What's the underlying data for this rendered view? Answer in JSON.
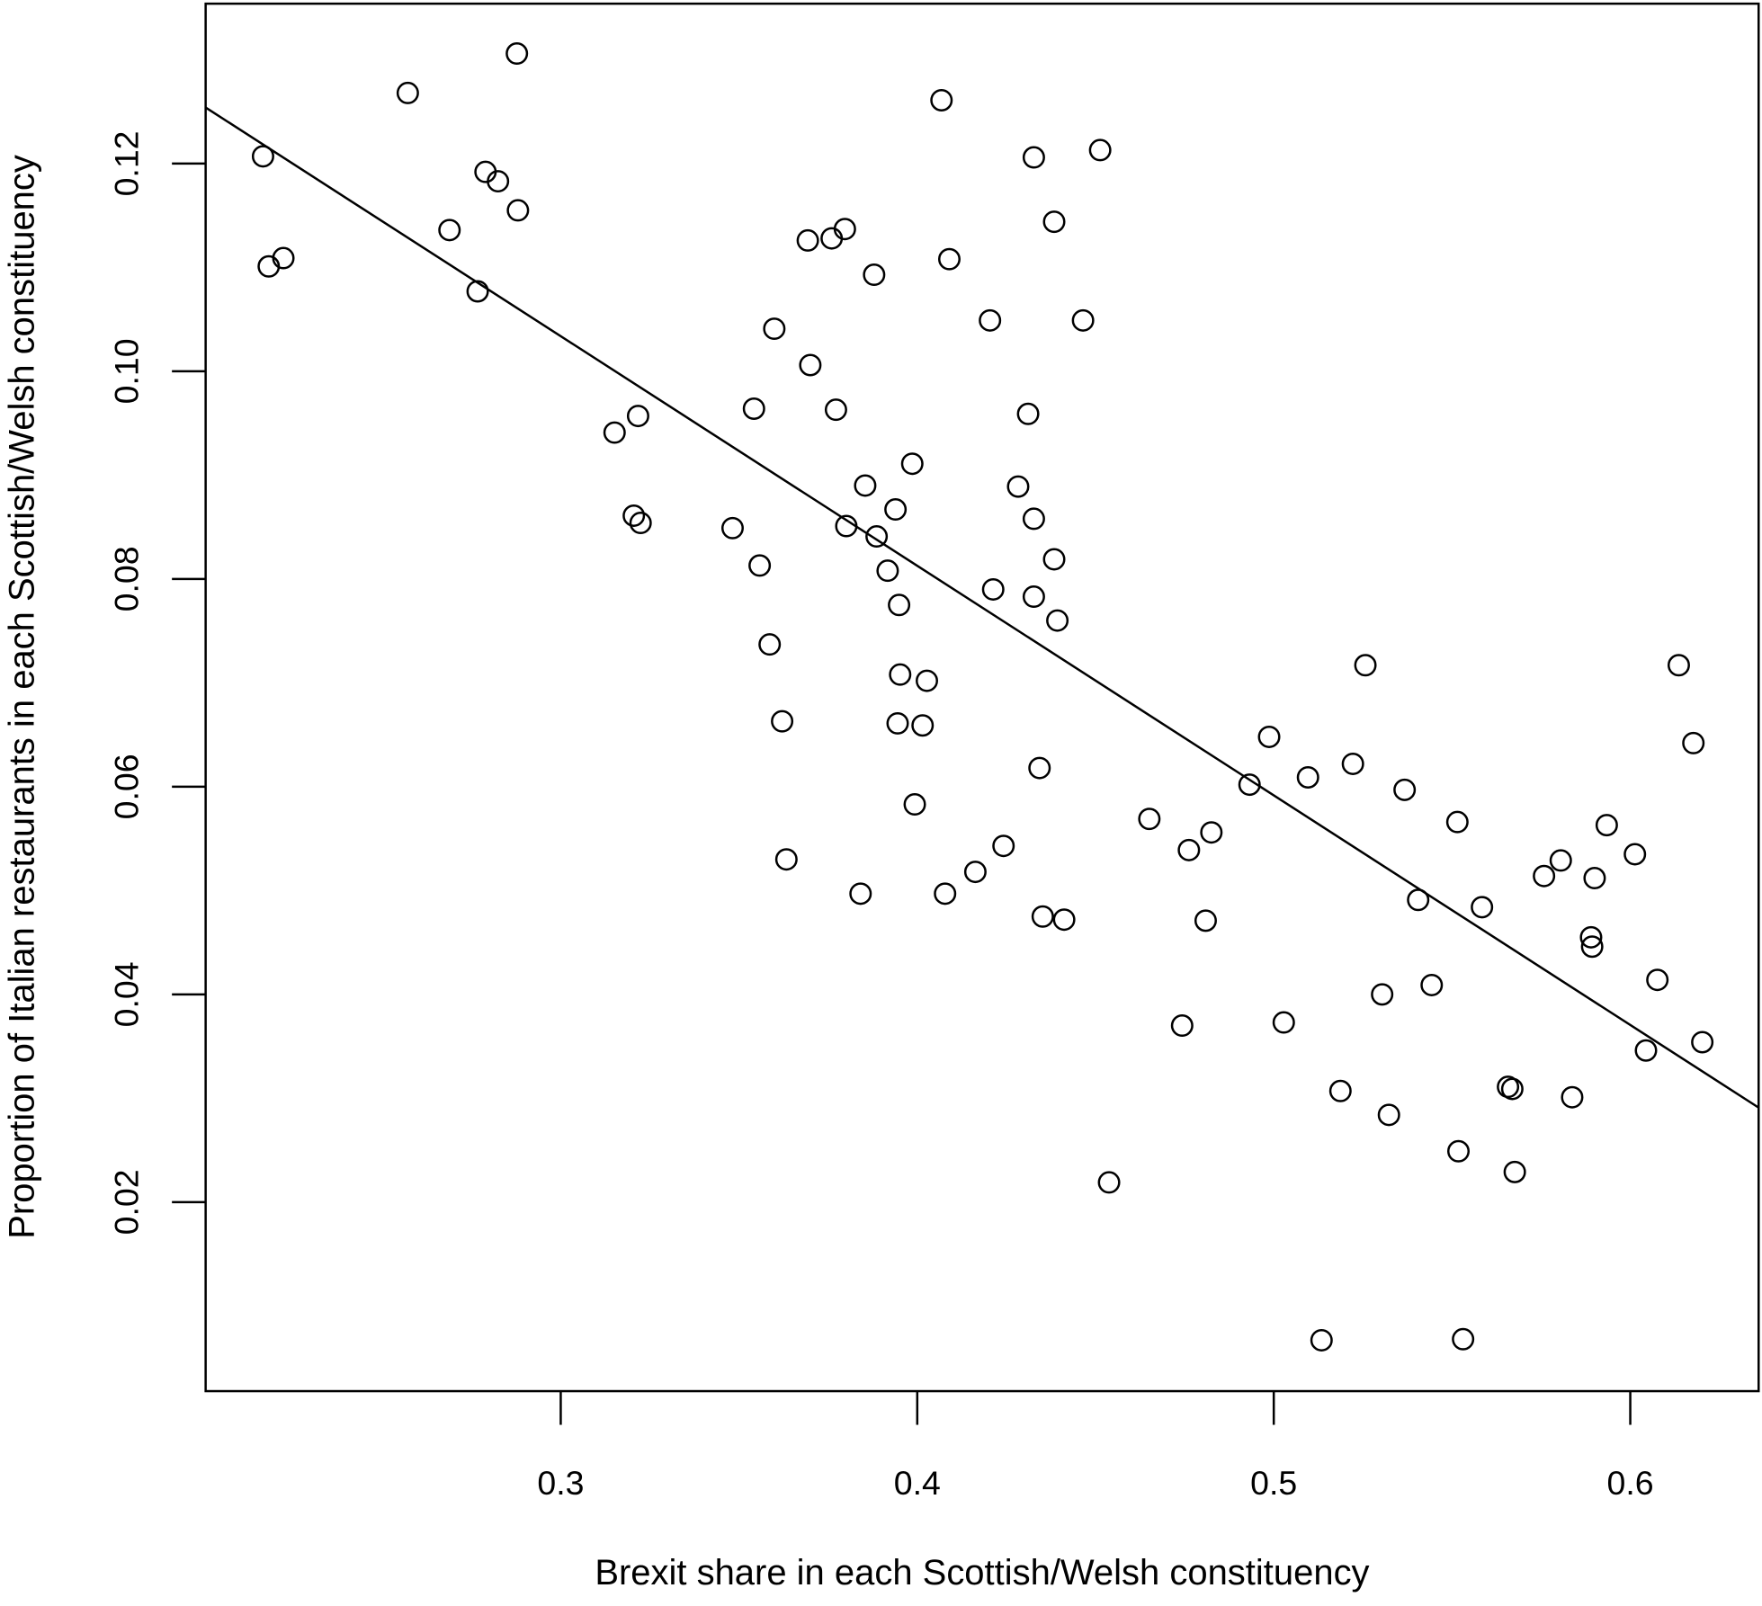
{
  "chart_data": {
    "type": "scatter",
    "title": "",
    "xlabel": "Brexit share in each Scottish/Welsh constituency",
    "ylabel": "Proportion of Italian restaurants in each Scottish/Welsh constituency",
    "xlim": [
      0.2004,
      0.636
    ],
    "ylim": [
      0.0018,
      0.1354
    ],
    "xticks": [
      0.3,
      0.4,
      0.5,
      0.6
    ],
    "xtick_labels": [
      "0.3",
      "0.4",
      "0.5",
      "0.6"
    ],
    "yticks": [
      0.02,
      0.04,
      0.06,
      0.08,
      0.1,
      0.12
    ],
    "ytick_labels": [
      "0.02",
      "0.04",
      "0.06",
      "0.08",
      "0.10",
      "0.12"
    ],
    "grid": false,
    "marker": "open-circle",
    "color": "#000000",
    "points": [
      [
        0.2165,
        0.1207
      ],
      [
        0.2181,
        0.1101
      ],
      [
        0.2222,
        0.1109
      ],
      [
        0.2571,
        0.1268
      ],
      [
        0.2688,
        0.1136
      ],
      [
        0.2767,
        0.1077
      ],
      [
        0.2789,
        0.1192
      ],
      [
        0.2824,
        0.1183
      ],
      [
        0.288,
        0.1155
      ],
      [
        0.2877,
        0.1306
      ],
      [
        0.3151,
        0.0941
      ],
      [
        0.3217,
        0.0957
      ],
      [
        0.3205,
        0.0861
      ],
      [
        0.3224,
        0.0854
      ],
      [
        0.3482,
        0.0849
      ],
      [
        0.3542,
        0.0964
      ],
      [
        0.3558,
        0.0813
      ],
      [
        0.3599,
        0.1041
      ],
      [
        0.3586,
        0.0737
      ],
      [
        0.3621,
        0.0663
      ],
      [
        0.3633,
        0.053
      ],
      [
        0.3693,
        0.1126
      ],
      [
        0.37,
        0.1006
      ],
      [
        0.376,
        0.1128
      ],
      [
        0.3797,
        0.1137
      ],
      [
        0.3772,
        0.0963
      ],
      [
        0.3801,
        0.0851
      ],
      [
        0.3841,
        0.0497
      ],
      [
        0.3854,
        0.089
      ],
      [
        0.3879,
        0.1093
      ],
      [
        0.3886,
        0.0841
      ],
      [
        0.3917,
        0.0808
      ],
      [
        0.3939,
        0.0867
      ],
      [
        0.3949,
        0.0775
      ],
      [
        0.3952,
        0.0708
      ],
      [
        0.3945,
        0.0661
      ],
      [
        0.3986,
        0.0911
      ],
      [
        0.3993,
        0.0583
      ],
      [
        0.4027,
        0.0702
      ],
      [
        0.4015,
        0.0659
      ],
      [
        0.4068,
        0.1261
      ],
      [
        0.409,
        0.1108
      ],
      [
        0.4078,
        0.0497
      ],
      [
        0.4163,
        0.0518
      ],
      [
        0.4204,
        0.1049
      ],
      [
        0.4213,
        0.079
      ],
      [
        0.4242,
        0.0543
      ],
      [
        0.4283,
        0.0889
      ],
      [
        0.4311,
        0.0959
      ],
      [
        0.4327,
        0.1206
      ],
      [
        0.4327,
        0.0858
      ],
      [
        0.4327,
        0.0783
      ],
      [
        0.4343,
        0.0618
      ],
      [
        0.4352,
        0.0475
      ],
      [
        0.4384,
        0.1144
      ],
      [
        0.4384,
        0.0819
      ],
      [
        0.4393,
        0.076
      ],
      [
        0.4412,
        0.0472
      ],
      [
        0.4465,
        0.1049
      ],
      [
        0.4513,
        0.1213
      ],
      [
        0.4538,
        0.0219
      ],
      [
        0.4651,
        0.0569
      ],
      [
        0.4743,
        0.037
      ],
      [
        0.4762,
        0.0539
      ],
      [
        0.4809,
        0.0471
      ],
      [
        0.4825,
        0.0556
      ],
      [
        0.4932,
        0.0602
      ],
      [
        0.4987,
        0.0648
      ],
      [
        0.5028,
        0.0373
      ],
      [
        0.5096,
        0.0609
      ],
      [
        0.5134,
        0.0067
      ],
      [
        0.5187,
        0.0307
      ],
      [
        0.5222,
        0.0622
      ],
      [
        0.5257,
        0.0717
      ],
      [
        0.5304,
        0.04
      ],
      [
        0.5323,
        0.0284
      ],
      [
        0.5367,
        0.0597
      ],
      [
        0.5405,
        0.0491
      ],
      [
        0.5443,
        0.0409
      ],
      [
        0.5515,
        0.0566
      ],
      [
        0.5518,
        0.0249
      ],
      [
        0.5531,
        0.0068
      ],
      [
        0.5584,
        0.0484
      ],
      [
        0.5657,
        0.0311
      ],
      [
        0.5669,
        0.0309
      ],
      [
        0.5676,
        0.0229
      ],
      [
        0.5758,
        0.0514
      ],
      [
        0.5805,
        0.0529
      ],
      [
        0.5837,
        0.0301
      ],
      [
        0.589,
        0.0455
      ],
      [
        0.5893,
        0.0446
      ],
      [
        0.5934,
        0.0563
      ],
      [
        0.59,
        0.0512
      ],
      [
        0.6013,
        0.0535
      ],
      [
        0.6044,
        0.0346
      ],
      [
        0.6076,
        0.0414
      ],
      [
        0.6136,
        0.0717
      ],
      [
        0.6177,
        0.0642
      ],
      [
        0.6202,
        0.0354
      ]
    ],
    "fit_line": {
      "type": "linear",
      "x": [
        0.2004,
        0.636
      ],
      "y": [
        0.1254,
        0.0291
      ]
    }
  }
}
